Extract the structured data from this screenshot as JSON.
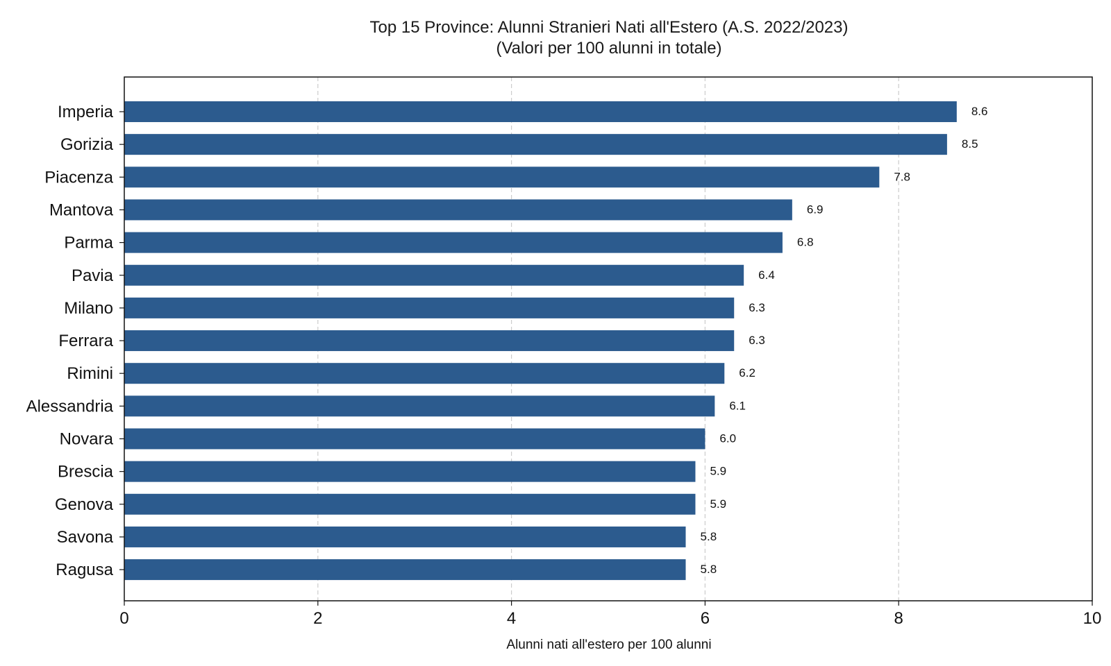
{
  "chart_data": {
    "type": "bar",
    "orientation": "horizontal",
    "title": "Top 15 Province: Alunni Stranieri Nati all'Estero (A.S. 2022/2023)",
    "subtitle": "(Valori per 100 alunni in totale)",
    "xlabel": "Alunni nati all'estero per 100 alunni",
    "ylabel": "",
    "xlim": [
      0,
      10
    ],
    "xticks": [
      0,
      2,
      4,
      6,
      8,
      10
    ],
    "grid": "vertical-dashed",
    "bar_color": "#2c5b8e",
    "categories": [
      "Imperia",
      "Gorizia",
      "Piacenza",
      "Mantova",
      "Parma",
      "Pavia",
      "Milano",
      "Ferrara",
      "Rimini",
      "Alessandria",
      "Novara",
      "Brescia",
      "Genova",
      "Savona",
      "Ragusa"
    ],
    "values": [
      8.6,
      8.5,
      7.8,
      6.9,
      6.8,
      6.4,
      6.3,
      6.3,
      6.2,
      6.1,
      6.0,
      5.9,
      5.9,
      5.8,
      5.8
    ],
    "value_labels": [
      "8.6",
      "8.5",
      "7.8",
      "6.9",
      "6.8",
      "6.4",
      "6.3",
      "6.3",
      "6.2",
      "6.1",
      "6.0",
      "5.9",
      "5.9",
      "5.8",
      "5.8"
    ]
  }
}
